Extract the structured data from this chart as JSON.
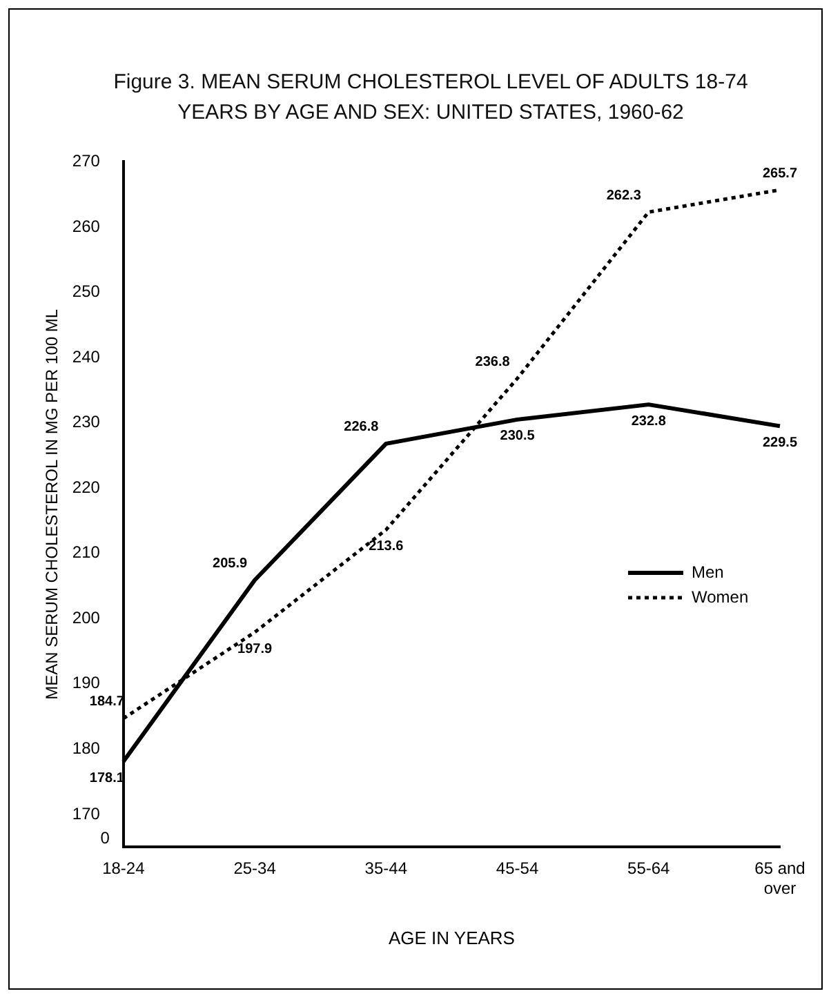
{
  "chart_data": {
    "type": "line",
    "title": "Figure 3. MEAN SERUM CHOLESTEROL LEVEL OF ADULTS 18-74 YEARS BY AGE AND SEX: UNITED STATES, 1960-62",
    "xlabel": "AGE IN YEARS",
    "ylabel": "MEAN SERUM CHOLESTEROL IN MG PER 100 ML",
    "categories": [
      "18-24",
      "25-34",
      "35-44",
      "45-54",
      "55-64",
      "65 and over"
    ],
    "series": [
      {
        "name": "Men",
        "color": "#000000",
        "line_style": "solid",
        "values": [
          178.1,
          205.9,
          226.8,
          230.5,
          232.8,
          229.5
        ]
      },
      {
        "name": "Women",
        "color": "#000000",
        "line_style": "dotted",
        "values": [
          184.7,
          197.9,
          213.6,
          236.8,
          262.3,
          265.7
        ]
      }
    ],
    "ylim": [
      165,
      270
    ],
    "yticks": [
      170,
      180,
      190,
      200,
      210,
      220,
      230,
      240,
      250,
      260,
      270
    ],
    "annotations": [
      "0"
    ],
    "grid": false,
    "legend": "right",
    "marker": "none",
    "data_labels": true
  }
}
